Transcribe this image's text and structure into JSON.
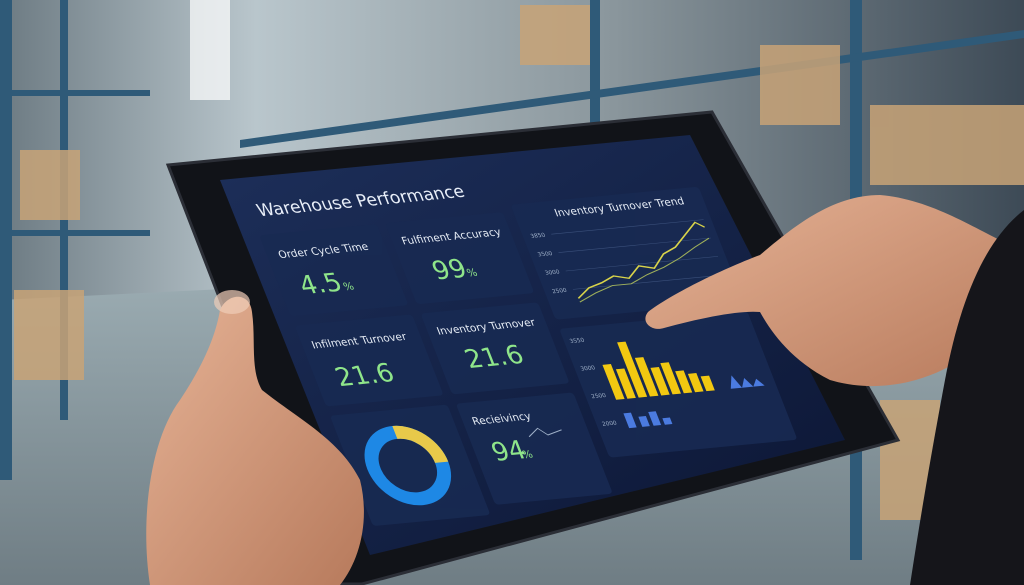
{
  "screen": {
    "title": "Warehouse Performance",
    "cards": [
      {
        "label": "Order Cycle Time",
        "value": "4.5",
        "unit": "%"
      },
      {
        "label": "Fulfiment Accuracy",
        "value": "99",
        "unit": "%"
      },
      {
        "label": "Infilment Turnover",
        "value": "21.6"
      },
      {
        "label": "Inventory Turnover",
        "value": "21.6"
      },
      {
        "label": "Recieivincy",
        "value": "94",
        "unit": "%"
      }
    ],
    "line_chart": {
      "title": "Inventory Turnover Trend",
      "yticks": [
        "3850",
        "3500",
        "3000",
        "2500"
      ]
    },
    "bar_chart": {
      "yticks": [
        "3550",
        "3000",
        "2500",
        "2000"
      ]
    }
  }
}
